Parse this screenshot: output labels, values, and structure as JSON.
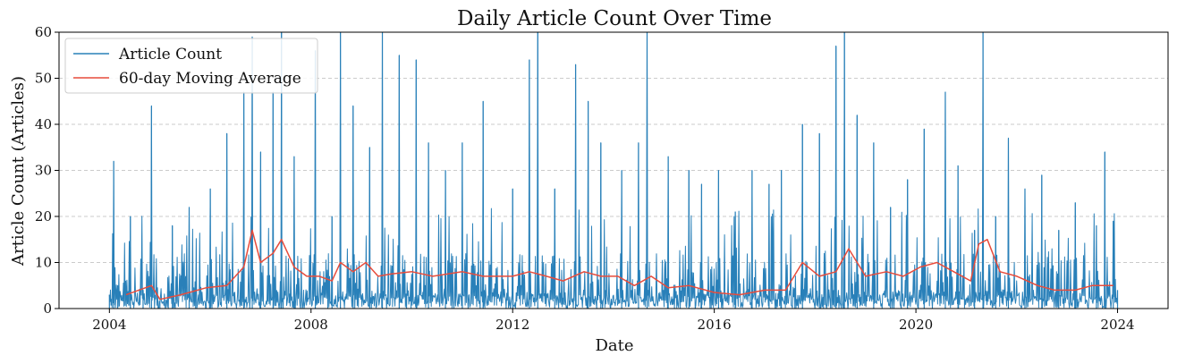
{
  "chart_data": {
    "type": "line",
    "title": "Daily Article Count Over Time",
    "xlabel": "Date",
    "ylabel": "Article Count (Articles)",
    "xlim": [
      "2003-01-01",
      "2025-01-01"
    ],
    "ylim": [
      0,
      60
    ],
    "x_ticks": [
      "2004",
      "2008",
      "2012",
      "2016",
      "2020",
      "2024"
    ],
    "y_ticks": [
      0,
      10,
      20,
      30,
      40,
      50,
      60
    ],
    "grid": "horizontal dashed",
    "legend_position": "top-left",
    "series": [
      {
        "name": "Article Count",
        "color": "#2980b9",
        "style": "daily spikes",
        "points": [
          [
            "2004-01-01",
            3
          ],
          [
            "2004-02-01",
            32
          ],
          [
            "2004-03-01",
            5
          ],
          [
            "2004-06-01",
            20
          ],
          [
            "2004-09-01",
            4
          ],
          [
            "2004-11-01",
            44
          ],
          [
            "2005-01-01",
            1
          ],
          [
            "2005-04-01",
            18
          ],
          [
            "2005-08-01",
            22
          ],
          [
            "2006-01-01",
            26
          ],
          [
            "2006-05-01",
            38
          ],
          [
            "2006-09-01",
            47
          ],
          [
            "2006-11-01",
            59
          ],
          [
            "2007-01-01",
            34
          ],
          [
            "2007-04-01",
            47
          ],
          [
            "2007-06-01",
            60
          ],
          [
            "2007-09-01",
            33
          ],
          [
            "2008-02-01",
            56
          ],
          [
            "2008-06-01",
            20
          ],
          [
            "2008-08-01",
            60
          ],
          [
            "2008-11-01",
            44
          ],
          [
            "2009-03-01",
            35
          ],
          [
            "2009-06-01",
            60
          ],
          [
            "2009-10-01",
            55
          ],
          [
            "2010-02-01",
            54
          ],
          [
            "2010-05-01",
            36
          ],
          [
            "2010-09-01",
            30
          ],
          [
            "2011-01-01",
            36
          ],
          [
            "2011-06-01",
            45
          ],
          [
            "2012-01-01",
            26
          ],
          [
            "2012-05-01",
            54
          ],
          [
            "2012-07-01",
            60
          ],
          [
            "2012-11-01",
            26
          ],
          [
            "2013-04-01",
            53
          ],
          [
            "2013-07-01",
            45
          ],
          [
            "2013-10-01",
            36
          ],
          [
            "2014-03-01",
            30
          ],
          [
            "2014-07-01",
            36
          ],
          [
            "2014-09-01",
            60
          ],
          [
            "2015-02-01",
            33
          ],
          [
            "2015-07-01",
            30
          ],
          [
            "2015-10-01",
            27
          ],
          [
            "2016-02-01",
            30
          ],
          [
            "2016-06-01",
            21
          ],
          [
            "2016-10-01",
            30
          ],
          [
            "2017-02-01",
            27
          ],
          [
            "2017-05-01",
            30
          ],
          [
            "2017-10-01",
            40
          ],
          [
            "2018-02-01",
            38
          ],
          [
            "2018-06-01",
            57
          ],
          [
            "2018-08-01",
            60
          ],
          [
            "2018-11-01",
            42
          ],
          [
            "2019-03-01",
            36
          ],
          [
            "2019-07-01",
            22
          ],
          [
            "2019-11-01",
            28
          ],
          [
            "2020-03-01",
            39
          ],
          [
            "2020-08-01",
            47
          ],
          [
            "2020-11-01",
            31
          ],
          [
            "2021-03-01",
            17
          ],
          [
            "2021-05-01",
            60
          ],
          [
            "2021-08-01",
            20
          ],
          [
            "2021-11-01",
            37
          ],
          [
            "2022-03-01",
            26
          ],
          [
            "2022-07-01",
            29
          ],
          [
            "2022-11-01",
            17
          ],
          [
            "2023-03-01",
            23
          ],
          [
            "2023-08-01",
            18
          ],
          [
            "2023-10-01",
            34
          ],
          [
            "2023-12-01",
            19
          ],
          [
            "2024-01-01",
            4
          ]
        ]
      },
      {
        "name": "60-day Moving Average",
        "color": "#e74c3c",
        "points": [
          [
            "2004-05-01",
            3
          ],
          [
            "2004-08-01",
            4
          ],
          [
            "2004-11-01",
            5
          ],
          [
            "2005-01-01",
            2
          ],
          [
            "2005-06-01",
            3
          ],
          [
            "2005-12-01",
            4.5
          ],
          [
            "2006-05-01",
            5
          ],
          [
            "2006-09-01",
            9
          ],
          [
            "2006-11-01",
            17
          ],
          [
            "2007-01-01",
            10
          ],
          [
            "2007-04-01",
            12
          ],
          [
            "2007-06-01",
            15
          ],
          [
            "2007-09-01",
            9
          ],
          [
            "2007-12-01",
            7
          ],
          [
            "2008-03-01",
            7
          ],
          [
            "2008-06-01",
            6
          ],
          [
            "2008-08-01",
            10
          ],
          [
            "2008-11-01",
            8
          ],
          [
            "2009-02-01",
            10
          ],
          [
            "2009-05-01",
            7
          ],
          [
            "2009-08-01",
            7.5
          ],
          [
            "2010-01-01",
            8
          ],
          [
            "2010-06-01",
            7
          ],
          [
            "2011-01-01",
            8
          ],
          [
            "2011-06-01",
            7
          ],
          [
            "2012-01-01",
            7
          ],
          [
            "2012-05-01",
            8
          ],
          [
            "2012-09-01",
            7
          ],
          [
            "2013-01-01",
            6
          ],
          [
            "2013-06-01",
            8
          ],
          [
            "2013-10-01",
            7
          ],
          [
            "2014-02-01",
            7
          ],
          [
            "2014-06-01",
            5
          ],
          [
            "2014-10-01",
            7
          ],
          [
            "2015-02-01",
            4.5
          ],
          [
            "2015-07-01",
            5
          ],
          [
            "2016-01-01",
            3.5
          ],
          [
            "2016-07-01",
            3
          ],
          [
            "2017-01-01",
            4
          ],
          [
            "2017-06-01",
            4
          ],
          [
            "2017-10-01",
            10
          ],
          [
            "2018-02-01",
            7
          ],
          [
            "2018-06-01",
            8
          ],
          [
            "2018-09-01",
            13
          ],
          [
            "2019-01-01",
            7
          ],
          [
            "2019-06-01",
            8
          ],
          [
            "2019-10-01",
            7
          ],
          [
            "2020-02-01",
            9
          ],
          [
            "2020-06-01",
            10
          ],
          [
            "2020-10-01",
            8
          ],
          [
            "2021-02-01",
            6
          ],
          [
            "2021-04-01",
            14
          ],
          [
            "2021-06-01",
            15
          ],
          [
            "2021-09-01",
            8
          ],
          [
            "2022-01-01",
            7
          ],
          [
            "2022-06-01",
            5
          ],
          [
            "2022-10-01",
            4
          ],
          [
            "2023-03-01",
            4
          ],
          [
            "2023-07-01",
            5
          ],
          [
            "2023-12-01",
            5
          ]
        ]
      }
    ]
  }
}
